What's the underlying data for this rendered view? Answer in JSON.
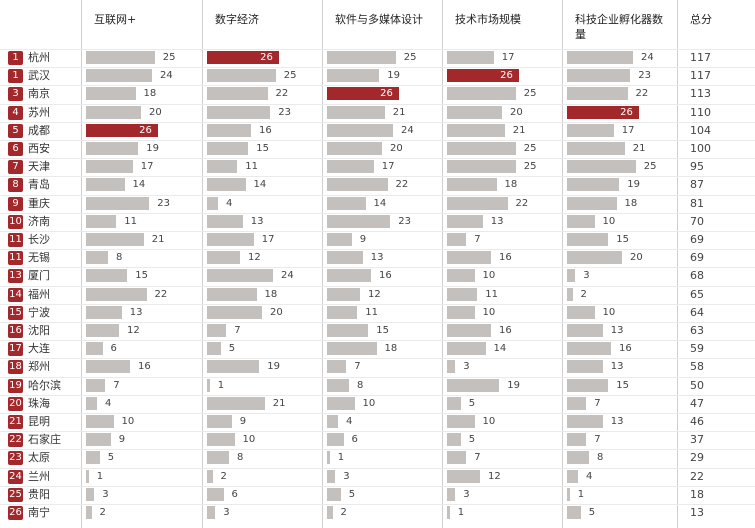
{
  "header": {
    "columns": [
      "互联网+",
      "数字经济",
      "软件与多媒体设计",
      "技术市场规模",
      "科技企业孵化器数量",
      "总分"
    ]
  },
  "table": {
    "rows": [
      {
        "rank": 1,
        "city": "杭州",
        "scores": [
          25,
          26,
          25,
          17,
          24
        ],
        "total": 117
      },
      {
        "rank": 1,
        "city": "武汉",
        "scores": [
          24,
          25,
          19,
          26,
          23
        ],
        "total": 117
      },
      {
        "rank": 3,
        "city": "南京",
        "scores": [
          18,
          22,
          26,
          25,
          22
        ],
        "total": 113
      },
      {
        "rank": 4,
        "city": "苏州",
        "scores": [
          20,
          23,
          21,
          20,
          26
        ],
        "total": 110
      },
      {
        "rank": 5,
        "city": "成都",
        "scores": [
          26,
          16,
          24,
          21,
          17
        ],
        "total": 104
      },
      {
        "rank": 6,
        "city": "西安",
        "scores": [
          19,
          15,
          20,
          25,
          21
        ],
        "total": 100
      },
      {
        "rank": 7,
        "city": "天津",
        "scores": [
          17,
          11,
          17,
          25,
          25
        ],
        "total": 95
      },
      {
        "rank": 8,
        "city": "青岛",
        "scores": [
          14,
          14,
          22,
          18,
          19
        ],
        "total": 87
      },
      {
        "rank": 9,
        "city": "重庆",
        "scores": [
          23,
          4,
          14,
          22,
          18
        ],
        "total": 81
      },
      {
        "rank": 10,
        "city": "济南",
        "scores": [
          11,
          13,
          23,
          13,
          10
        ],
        "total": 70
      },
      {
        "rank": 11,
        "city": "长沙",
        "scores": [
          21,
          17,
          9,
          7,
          15
        ],
        "total": 69
      },
      {
        "rank": 11,
        "city": "无锡",
        "scores": [
          8,
          12,
          13,
          16,
          20
        ],
        "total": 69
      },
      {
        "rank": 13,
        "city": "厦门",
        "scores": [
          15,
          24,
          16,
          10,
          3
        ],
        "total": 68
      },
      {
        "rank": 14,
        "city": "福州",
        "scores": [
          22,
          18,
          12,
          11,
          2
        ],
        "total": 65
      },
      {
        "rank": 15,
        "city": "宁波",
        "scores": [
          13,
          20,
          11,
          10,
          10
        ],
        "total": 64
      },
      {
        "rank": 16,
        "city": "沈阳",
        "scores": [
          12,
          7,
          15,
          16,
          13
        ],
        "total": 63
      },
      {
        "rank": 17,
        "city": "大连",
        "scores": [
          6,
          5,
          18,
          14,
          16
        ],
        "total": 59
      },
      {
        "rank": 18,
        "city": "郑州",
        "scores": [
          16,
          19,
          7,
          3,
          13
        ],
        "total": 58
      },
      {
        "rank": 19,
        "city": "哈尔滨",
        "scores": [
          7,
          1,
          8,
          19,
          15
        ],
        "total": 50
      },
      {
        "rank": 20,
        "city": "珠海",
        "scores": [
          4,
          21,
          10,
          5,
          7
        ],
        "total": 47
      },
      {
        "rank": 21,
        "city": "昆明",
        "scores": [
          10,
          9,
          4,
          10,
          13
        ],
        "total": 46
      },
      {
        "rank": 22,
        "city": "石家庄",
        "scores": [
          9,
          10,
          6,
          5,
          7
        ],
        "total": 37
      },
      {
        "rank": 23,
        "city": "太原",
        "scores": [
          5,
          8,
          1,
          7,
          8
        ],
        "total": 29
      },
      {
        "rank": 24,
        "city": "兰州",
        "scores": [
          1,
          2,
          3,
          12,
          4
        ],
        "total": 22
      },
      {
        "rank": 25,
        "city": "贵阳",
        "scores": [
          3,
          6,
          5,
          3,
          1
        ],
        "total": 18
      },
      {
        "rank": 26,
        "city": "南宁",
        "scores": [
          2,
          3,
          2,
          1,
          5
        ],
        "total": 13
      }
    ]
  }
}
